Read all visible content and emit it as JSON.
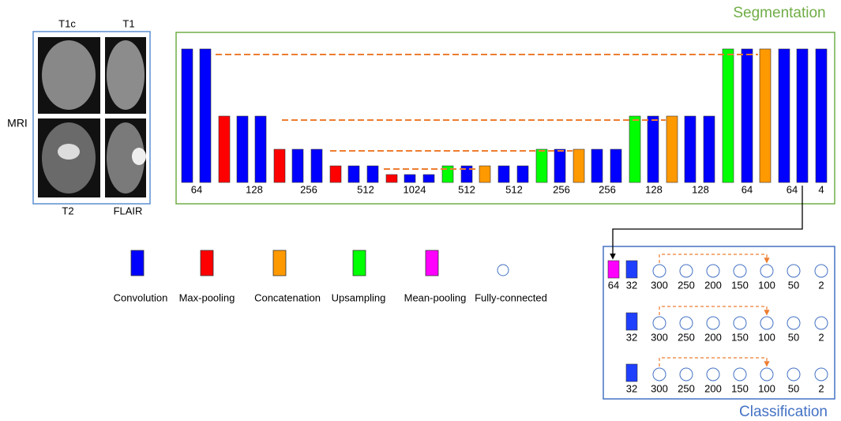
{
  "mri": {
    "label": "MRI",
    "images": [
      "T1c",
      "T1",
      "T2",
      "FLAIR"
    ]
  },
  "segmentation": {
    "title": "Segmentation",
    "layers": [
      "64",
      "128",
      "256",
      "512",
      "1024",
      "512",
      "512",
      "256",
      "256",
      "128",
      "128",
      "64",
      "64",
      "4"
    ]
  },
  "legend": [
    "Convolution",
    "Max-pooling",
    "Concatenation",
    "Upsampling",
    "Mean-pooling",
    "Fully-connected"
  ],
  "classification": {
    "title": "Classification",
    "rows": [
      {
        "pool": "64",
        "conv": "32",
        "fc": [
          "300",
          "250",
          "200",
          "150",
          "100",
          "50",
          "2"
        ]
      },
      {
        "conv": "32",
        "fc": [
          "300",
          "250",
          "200",
          "150",
          "100",
          "50",
          "2"
        ]
      },
      {
        "conv": "32",
        "fc": [
          "300",
          "250",
          "200",
          "150",
          "100",
          "50",
          "2"
        ]
      }
    ]
  }
}
